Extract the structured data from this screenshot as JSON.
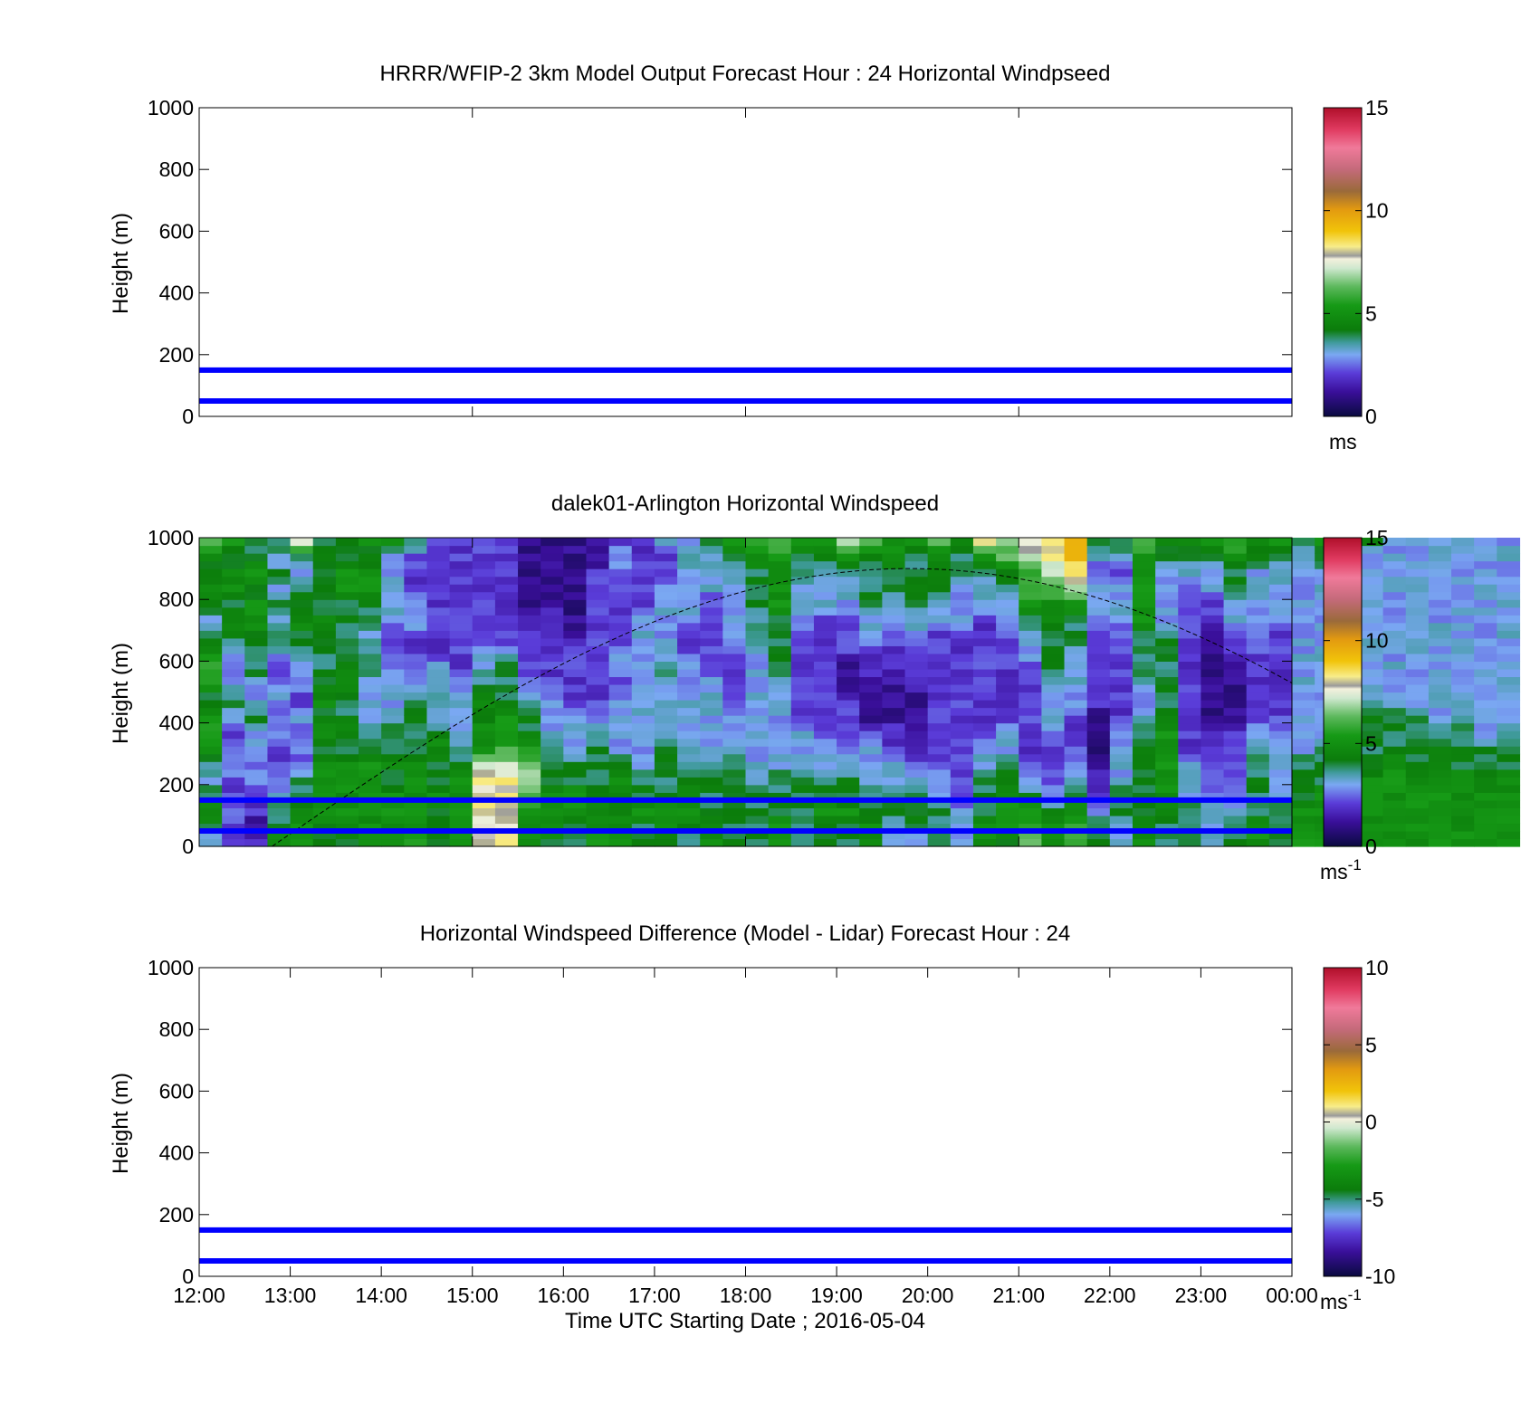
{
  "chart_data": [
    {
      "type": "heatmap",
      "title": "HRRR/WFIP-2 3km Model Output   Forecast Hour : 24 Horizontal Windpseed",
      "ylabel": "Height (m)",
      "ylim": [
        0,
        1000
      ],
      "yticks": [
        "0",
        "200",
        "400",
        "600",
        "800",
        "1000"
      ],
      "xlim_hours": [
        12,
        24
      ],
      "xticks": [],
      "data_present": false,
      "reference_lines_m": [
        50,
        150
      ],
      "colorbar": {
        "clim": [
          0,
          15
        ],
        "ticks": [
          "0",
          "5",
          "10",
          "15"
        ],
        "unit": "ms",
        "unit_sup": ""
      }
    },
    {
      "type": "heatmap",
      "title": "dalek01-Arlington  Horizontal Windspeed",
      "ylabel": "Height (m)",
      "ylim": [
        0,
        1000
      ],
      "yticks": [
        "0",
        "200",
        "400",
        "600",
        "800",
        "1000"
      ],
      "xlim_hours": [
        12,
        24
      ],
      "xticks": [],
      "data_present": true,
      "time_start_hour": 12.0,
      "time_step_hours": 0.25,
      "height_step_m": 25,
      "column_profiles_ms": [
        [
          3,
          4,
          5,
          4,
          3,
          4,
          5,
          6,
          5,
          4,
          5,
          6,
          5,
          4,
          3,
          4,
          5,
          4,
          5,
          6
        ],
        [
          2,
          2,
          3,
          2,
          2,
          3,
          2,
          2,
          3,
          4,
          3,
          2,
          3,
          4,
          5,
          4,
          5,
          5,
          4,
          5
        ],
        [
          2,
          1,
          2,
          2,
          3,
          2,
          3,
          3,
          4,
          3,
          3,
          4,
          4,
          4,
          5,
          5,
          4,
          5,
          4,
          4
        ],
        [
          5,
          4,
          4,
          3,
          3,
          2,
          2,
          3,
          2,
          3,
          3,
          2,
          3,
          4,
          3,
          4,
          3,
          4,
          3,
          4
        ],
        [
          5,
          5,
          5,
          4,
          4,
          2,
          3,
          2,
          3,
          2,
          3,
          3,
          4,
          4,
          5,
          4,
          4,
          3,
          4,
          7
        ],
        [
          4,
          4,
          5,
          5,
          5,
          5,
          4,
          5,
          4,
          5,
          4,
          4,
          4,
          4,
          5,
          4,
          4,
          4,
          4,
          4
        ],
        [
          4,
          5,
          5,
          5,
          5,
          5,
          4,
          5,
          4,
          4,
          5,
          5,
          4,
          4,
          4,
          4,
          5,
          5,
          4,
          4
        ],
        [
          5,
          5,
          5,
          5,
          5,
          5,
          4,
          4,
          3,
          3,
          3,
          4,
          4,
          3,
          4,
          4,
          5,
          5,
          4,
          5
        ],
        [
          5,
          5,
          5,
          5,
          4,
          5,
          4,
          4,
          3,
          3,
          3,
          3,
          2,
          2,
          3,
          3,
          3,
          3,
          3,
          5
        ],
        [
          6,
          5,
          5,
          5,
          5,
          5,
          4,
          4,
          4,
          4,
          3,
          3,
          2,
          2,
          3,
          3,
          2,
          2,
          2,
          4
        ],
        [
          4,
          4,
          4,
          5,
          4,
          4,
          5,
          4,
          3,
          4,
          3,
          3,
          2,
          2,
          2,
          2,
          2,
          2,
          2,
          2
        ],
        [
          5,
          5,
          5,
          5,
          5,
          4,
          4,
          3,
          3,
          3,
          3,
          2,
          2,
          2,
          2,
          2,
          2,
          2,
          2,
          2
        ],
        [
          8,
          8,
          8,
          8,
          8,
          7,
          5,
          5,
          4,
          5,
          4,
          3,
          3,
          2,
          2,
          2,
          2,
          2,
          2,
          2
        ],
        [
          8,
          8,
          8,
          8,
          8,
          7,
          6,
          5,
          5,
          4,
          4,
          4,
          3,
          2,
          2,
          2,
          2,
          2,
          2,
          2
        ],
        [
          5,
          5,
          5,
          6,
          7,
          6,
          5,
          4,
          4,
          3,
          3,
          2,
          2,
          2,
          2,
          1,
          1,
          1,
          1,
          1
        ],
        [
          4,
          5,
          5,
          5,
          4,
          4,
          4,
          3,
          3,
          3,
          2,
          2,
          2,
          2,
          2,
          1,
          1,
          1,
          1,
          1
        ],
        [
          4,
          4,
          5,
          5,
          4,
          4,
          3,
          3,
          3,
          2,
          2,
          2,
          2,
          1,
          1,
          1,
          1,
          1,
          1,
          1
        ],
        [
          5,
          5,
          5,
          4,
          4,
          4,
          4,
          3,
          3,
          2,
          2,
          2,
          2,
          2,
          2,
          2,
          2,
          2,
          1,
          1
        ],
        [
          5,
          5,
          4,
          4,
          5,
          4,
          3,
          3,
          3,
          3,
          2,
          3,
          3,
          2,
          2,
          2,
          2,
          2,
          3,
          2
        ],
        [
          4,
          4,
          5,
          4,
          4,
          3,
          3,
          3,
          3,
          3,
          3,
          3,
          3,
          3,
          3,
          2,
          2,
          2,
          2,
          2
        ],
        [
          4,
          5,
          5,
          4,
          4,
          4,
          4,
          3,
          3,
          3,
          3,
          4,
          3,
          3,
          3,
          3,
          3,
          2,
          2,
          3
        ],
        [
          4,
          4,
          5,
          5,
          4,
          4,
          3,
          3,
          3,
          3,
          3,
          3,
          2,
          2,
          3,
          3,
          3,
          3,
          4,
          3
        ],
        [
          5,
          5,
          4,
          4,
          4,
          4,
          3,
          3,
          3,
          3,
          3,
          2,
          2,
          2,
          2,
          2,
          3,
          3,
          3,
          4
        ],
        [
          4,
          4,
          4,
          4,
          4,
          4,
          3,
          3,
          3,
          2,
          2,
          2,
          2,
          3,
          3,
          3,
          3,
          3,
          4,
          5
        ],
        [
          4,
          4,
          4,
          4,
          3,
          3,
          3,
          3,
          3,
          3,
          3,
          3,
          3,
          4,
          3,
          4,
          4,
          4,
          5,
          6
        ],
        [
          5,
          5,
          4,
          4,
          4,
          3,
          3,
          3,
          3,
          3,
          3,
          4,
          4,
          4,
          4,
          5,
          5,
          5,
          5,
          6
        ],
        [
          4,
          4,
          4,
          4,
          4,
          3,
          3,
          3,
          2,
          2,
          2,
          2,
          2,
          2,
          3,
          3,
          3,
          4,
          4,
          5
        ],
        [
          4,
          4,
          5,
          4,
          4,
          3,
          3,
          2,
          2,
          2,
          2,
          2,
          2,
          2,
          2,
          3,
          3,
          3,
          4,
          5
        ],
        [
          4,
          4,
          5,
          4,
          4,
          3,
          3,
          2,
          2,
          2,
          1,
          1,
          2,
          2,
          2,
          3,
          3,
          4,
          5,
          7
        ],
        [
          5,
          5,
          4,
          4,
          3,
          3,
          3,
          2,
          1,
          1,
          1,
          2,
          2,
          3,
          3,
          4,
          4,
          4,
          4,
          6
        ],
        [
          3,
          3,
          4,
          4,
          3,
          3,
          2,
          2,
          1,
          1,
          1,
          2,
          2,
          2,
          3,
          3,
          4,
          4,
          5,
          5
        ],
        [
          3,
          4,
          4,
          4,
          3,
          2,
          2,
          1,
          1,
          1,
          2,
          2,
          2,
          3,
          3,
          4,
          4,
          4,
          4,
          5
        ],
        [
          4,
          4,
          4,
          3,
          3,
          2,
          2,
          2,
          2,
          2,
          2,
          2,
          2,
          2,
          3,
          3,
          4,
          4,
          5,
          6
        ],
        [
          3,
          3,
          3,
          2,
          2,
          2,
          2,
          2,
          2,
          2,
          2,
          2,
          2,
          2,
          3,
          3,
          3,
          4,
          4,
          5
        ],
        [
          5,
          5,
          4,
          4,
          4,
          3,
          3,
          2,
          2,
          2,
          2,
          2,
          2,
          2,
          2,
          3,
          3,
          4,
          5,
          8
        ],
        [
          4,
          5,
          5,
          5,
          4,
          4,
          3,
          3,
          2,
          2,
          2,
          2,
          2,
          2,
          3,
          3,
          4,
          4,
          6,
          7
        ],
        [
          6,
          6,
          5,
          4,
          3,
          2,
          2,
          2,
          2,
          2,
          2,
          2,
          3,
          3,
          4,
          5,
          6,
          6,
          7,
          8
        ],
        [
          5,
          5,
          4,
          3,
          2,
          2,
          2,
          3,
          3,
          3,
          3,
          4,
          4,
          4,
          5,
          5,
          6,
          7,
          8,
          8
        ],
        [
          6,
          6,
          5,
          4,
          3,
          3,
          2,
          2,
          2,
          3,
          3,
          3,
          3,
          4,
          4,
          5,
          7,
          8,
          9,
          9
        ],
        [
          4,
          4,
          3,
          2,
          2,
          1,
          1,
          1,
          1,
          2,
          2,
          2,
          2,
          2,
          3,
          3,
          3,
          2,
          3,
          4
        ],
        [
          3,
          3,
          4,
          4,
          3,
          3,
          3,
          3,
          2,
          2,
          2,
          2,
          2,
          2,
          3,
          3,
          3,
          2,
          3,
          4
        ],
        [
          5,
          5,
          4,
          4,
          4,
          4,
          4,
          4,
          3,
          3,
          3,
          4,
          4,
          4,
          5,
          5,
          5,
          5,
          5,
          6
        ],
        [
          4,
          4,
          5,
          5,
          5,
          5,
          5,
          5,
          4,
          4,
          4,
          4,
          4,
          4,
          3,
          3,
          3,
          3,
          4,
          5
        ],
        [
          4,
          4,
          4,
          3,
          3,
          3,
          2,
          2,
          2,
          2,
          2,
          2,
          2,
          2,
          2,
          2,
          2,
          3,
          4,
          5
        ],
        [
          3,
          3,
          3,
          3,
          2,
          2,
          2,
          2,
          1,
          1,
          1,
          1,
          1,
          1,
          2,
          2,
          3,
          3,
          4,
          5
        ],
        [
          4,
          4,
          3,
          3,
          2,
          2,
          2,
          2,
          1,
          1,
          1,
          1,
          2,
          2,
          3,
          3,
          4,
          4,
          5,
          6
        ],
        [
          5,
          5,
          4,
          4,
          4,
          4,
          3,
          3,
          2,
          2,
          2,
          2,
          2,
          3,
          3,
          3,
          3,
          3,
          4,
          5
        ],
        [
          4,
          4,
          4,
          3,
          3,
          3,
          3,
          3,
          2,
          2,
          2,
          2,
          2,
          2,
          3,
          3,
          3,
          3,
          4,
          5
        ],
        [
          5,
          5,
          5,
          4,
          4,
          4,
          3,
          3,
          3,
          3,
          3,
          3,
          3,
          3,
          3,
          3,
          3,
          3,
          3,
          4
        ],
        [
          5,
          5,
          5,
          5,
          4,
          4,
          4,
          3,
          3,
          3,
          3,
          3,
          3,
          3,
          3,
          3,
          3,
          3,
          4,
          5
        ],
        [
          5,
          5,
          5,
          5,
          5,
          4,
          4,
          4,
          3,
          3,
          3,
          3,
          3,
          3,
          3,
          4,
          4,
          4,
          5,
          5
        ],
        [
          5,
          5,
          5,
          5,
          5,
          4,
          4,
          4,
          4,
          3,
          3,
          3,
          3,
          3,
          3,
          3,
          3,
          3,
          3,
          4
        ],
        [
          5,
          5,
          5,
          5,
          5,
          5,
          4,
          4,
          4,
          3,
          3,
          3,
          3,
          3,
          3,
          3,
          3,
          3,
          3,
          3
        ],
        [
          5,
          5,
          5,
          5,
          5,
          4,
          4,
          4,
          4,
          3,
          3,
          3,
          3,
          3,
          3,
          3,
          3,
          3,
          3,
          3
        ],
        [
          5,
          5,
          5,
          5,
          5,
          5,
          4,
          4,
          3,
          3,
          3,
          3,
          3,
          3,
          3,
          3,
          3,
          3,
          3,
          3
        ],
        [
          5,
          5,
          5,
          5,
          5,
          4,
          4,
          4,
          3,
          3,
          3,
          3,
          3,
          3,
          3,
          3,
          3,
          3,
          3,
          3
        ],
        [
          5,
          5,
          5,
          5,
          4,
          4,
          4,
          3,
          3,
          3,
          3,
          3,
          3,
          3,
          3,
          3,
          3,
          3,
          3,
          3
        ],
        [
          5,
          5,
          5,
          5,
          5,
          4,
          4,
          4,
          3,
          3,
          3,
          3,
          3,
          3,
          3,
          3,
          3,
          3,
          3,
          3
        ]
      ],
      "overlay_curve_peak": {
        "hour": 19.8,
        "height_m": 900
      },
      "reference_lines_m": [
        50,
        150
      ],
      "colorbar": {
        "clim": [
          0,
          15
        ],
        "ticks": [
          "0",
          "5",
          "10",
          "15"
        ],
        "unit": "ms",
        "unit_sup": "-1"
      }
    },
    {
      "type": "heatmap",
      "title": "Horizontal Windspeed Difference (Model - Lidar) Forecast Hour : 24",
      "ylabel": "Height (m)",
      "xlabel": "Time UTC  Starting Date ; 2016-05-04",
      "ylim": [
        0,
        1000
      ],
      "yticks": [
        "0",
        "200",
        "400",
        "600",
        "800",
        "1000"
      ],
      "xlim_hours": [
        12,
        24
      ],
      "xticks": [
        "12:00",
        "13:00",
        "14:00",
        "15:00",
        "16:00",
        "17:00",
        "18:00",
        "19:00",
        "20:00",
        "21:00",
        "22:00",
        "23:00",
        "00:00"
      ],
      "data_present": false,
      "reference_lines_m": [
        50,
        150
      ],
      "colorbar": {
        "clim": [
          -10,
          10
        ],
        "ticks": [
          "-10",
          "-5",
          "0",
          "5",
          "10"
        ],
        "unit": "ms",
        "unit_sup": "-1"
      }
    }
  ],
  "colormap_stops": [
    [
      0.0,
      "#0a0a40"
    ],
    [
      0.08,
      "#3a0f9a"
    ],
    [
      0.14,
      "#5a3cd8"
    ],
    [
      0.2,
      "#7aa8f2"
    ],
    [
      0.24,
      "#3f9a9a"
    ],
    [
      0.28,
      "#0b7c0b"
    ],
    [
      0.36,
      "#169a16"
    ],
    [
      0.42,
      "#5cb85c"
    ],
    [
      0.48,
      "#cfe8cf"
    ],
    [
      0.51,
      "#f3f0dc"
    ],
    [
      0.52,
      "#9a9a9a"
    ],
    [
      0.55,
      "#f8ed8a"
    ],
    [
      0.6,
      "#f1c40a"
    ],
    [
      0.67,
      "#e39a10"
    ],
    [
      0.73,
      "#9a6a3a"
    ],
    [
      0.8,
      "#c46a7a"
    ],
    [
      0.87,
      "#f07a9a"
    ],
    [
      0.93,
      "#e03a60"
    ],
    [
      1.0,
      "#b00f2a"
    ]
  ],
  "reference_line_color": "#0000ff"
}
